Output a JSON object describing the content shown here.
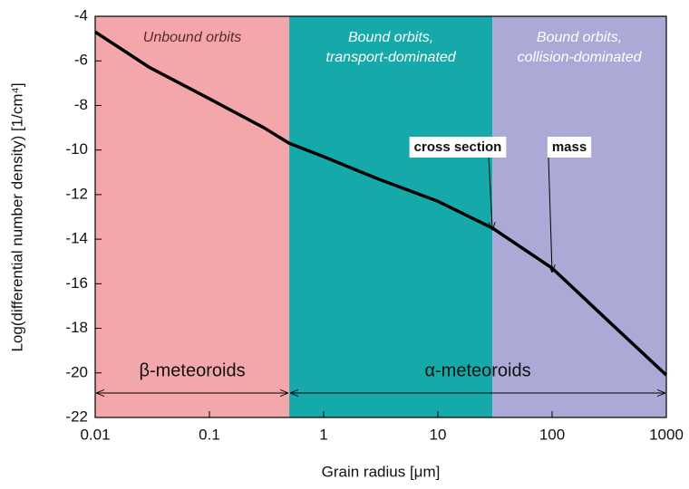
{
  "chart_data": {
    "type": "line",
    "xlabel": "Grain radius [μm]",
    "ylabel": "Log(differential number density) [1/cm⁴]",
    "log_x": true,
    "xlim": [
      0.01,
      1000
    ],
    "xticks": [
      0.01,
      0.1,
      1,
      10,
      100,
      1000
    ],
    "ylim": [
      -22,
      -4
    ],
    "yticks": [
      -4,
      -6,
      -8,
      -10,
      -12,
      -14,
      -16,
      -18,
      -20,
      -22
    ],
    "x": [
      0.01,
      0.03,
      0.1,
      0.3,
      0.5,
      1,
      3,
      10,
      30,
      100,
      300,
      1000
    ],
    "values": [
      -4.7,
      -6.3,
      -7.7,
      -9.0,
      -9.7,
      -10.3,
      -11.3,
      -12.3,
      -13.5,
      -15.3,
      -17.6,
      -20.1
    ],
    "color": "#000000",
    "regions": [
      {
        "label_lines": [
          "Unbound orbits"
        ],
        "start": 0.01,
        "end": 0.5,
        "color": "#f4a7aa",
        "label_color": "#5a2a2a"
      },
      {
        "label_lines": [
          "Bound orbits,",
          "transport-dominated"
        ],
        "start": 0.5,
        "end": 30,
        "color": "#16a9aa",
        "label_color": "#ffffff"
      },
      {
        "label_lines": [
          "Bound orbits,",
          "collision-dominated"
        ],
        "start": 30,
        "end": 1000,
        "color": "#aba9d5",
        "label_color": "#ffffff"
      }
    ],
    "ranges": [
      {
        "label": "β-meteoroids",
        "start": 0.01,
        "end": 0.5
      },
      {
        "label": "α-meteoroids",
        "start": 0.5,
        "end": 1000
      }
    ],
    "annotations": [
      {
        "text": "cross section",
        "x": 30,
        "y": -13.6
      },
      {
        "text": "mass",
        "x": 100,
        "y": -15.5
      }
    ]
  }
}
